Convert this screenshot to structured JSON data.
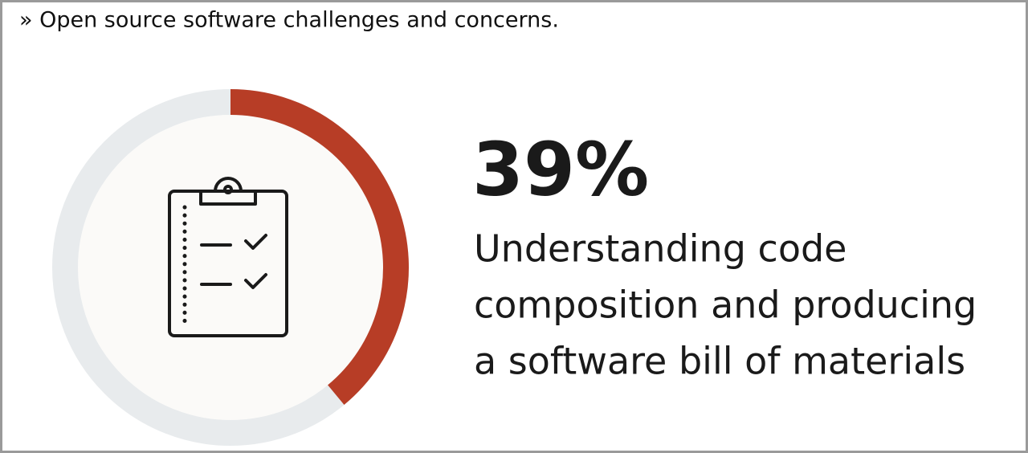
{
  "chart_data": {
    "type": "donut",
    "title": "» Open source software challenges and concerns.",
    "values": [
      39
    ],
    "value_labels": [
      "39%"
    ],
    "label": [
      "Understanding code",
      "composition and producing",
      "a software bill of materials"
    ],
    "color": "#b73d26",
    "track_color": "#e8ebed"
  }
}
